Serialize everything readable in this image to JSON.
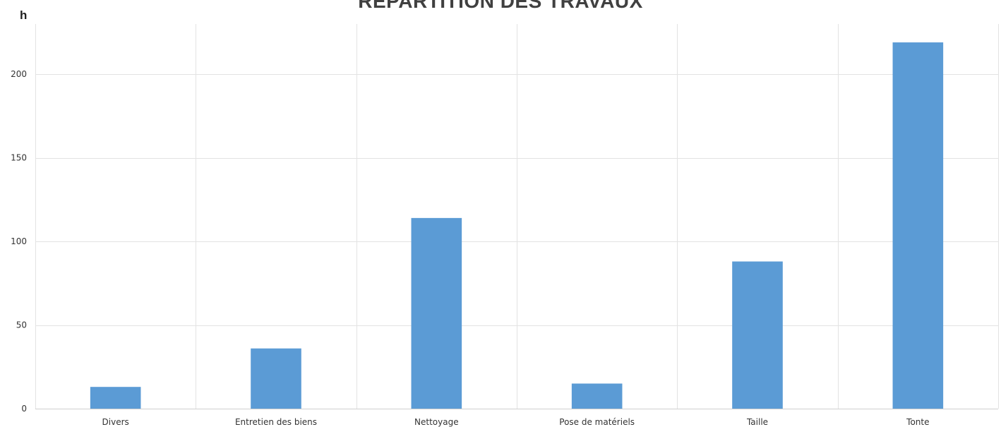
{
  "chart_data": {
    "type": "bar",
    "title": "RÉPARTITION DES TRAVAUX",
    "ylabel": "h",
    "xlabel": "",
    "categories": [
      "Divers",
      "Entretien des biens",
      "Nettoyage",
      "Pose de matériels",
      "Taille",
      "Tonte"
    ],
    "values": [
      13,
      36,
      114,
      15,
      88,
      219
    ],
    "ylim": [
      0,
      230
    ],
    "yticks": [
      0,
      50,
      100,
      150,
      200
    ],
    "grid": true,
    "bar_color": "#5b9bd5"
  }
}
